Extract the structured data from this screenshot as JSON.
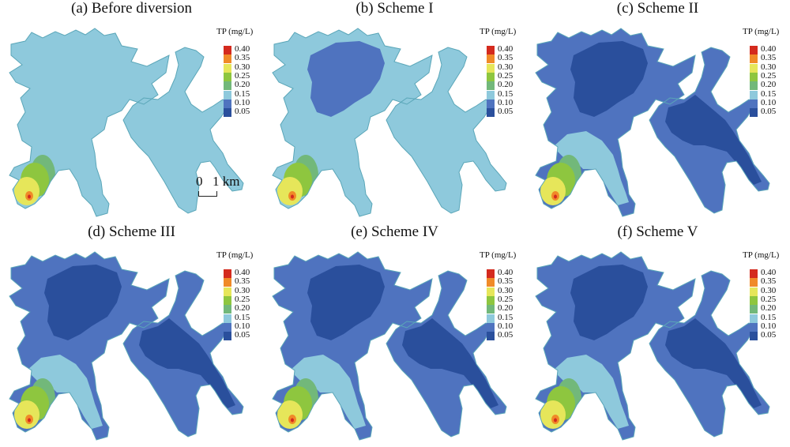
{
  "colors": {
    "outline": "#5aa6b8",
    "c005": "#2a4f9c",
    "c010": "#4f73bf",
    "c015": "#8ec9dc",
    "c020": "#72b87a",
    "c025": "#8ec63f",
    "c030": "#e6e65a",
    "c035": "#f08a28",
    "c040": "#d42a1e"
  },
  "legend": {
    "title": "TP (mg/L)",
    "items": [
      {
        "label": "0.40",
        "color": "#d42a1e"
      },
      {
        "label": "0.35",
        "color": "#f08a28"
      },
      {
        "label": "0.30",
        "color": "#e6e65a"
      },
      {
        "label": "0.25",
        "color": "#8ec63f"
      },
      {
        "label": "0.20",
        "color": "#72b87a"
      },
      {
        "label": "0.15",
        "color": "#8ec9dc"
      },
      {
        "label": "0.10",
        "color": "#4f73bf"
      },
      {
        "label": "0.05",
        "color": "#2a4f9c"
      }
    ]
  },
  "scale_bar": {
    "zero": "0",
    "value": "1 km"
  },
  "panels": [
    {
      "id": "a",
      "title": "(a) Before diversion",
      "base": "c015",
      "west_core": null,
      "east_core": null
    },
    {
      "id": "b",
      "title": "(b) Scheme I",
      "base": "c015",
      "west_core": "c010",
      "east_core": null
    },
    {
      "id": "c",
      "title": "(c) Scheme II",
      "base": "c010",
      "west_core": "c005",
      "east_core": "c005"
    },
    {
      "id": "d",
      "title": "(d) Scheme III",
      "base": "c010",
      "west_core": "c005",
      "east_core": "c005"
    },
    {
      "id": "e",
      "title": "(e) Scheme IV",
      "base": "c010",
      "west_core": "c005",
      "east_core": "c005"
    },
    {
      "id": "f",
      "title": "(f) Scheme V",
      "base": "c010",
      "west_core": "c005",
      "east_core": "c005"
    }
  ]
}
